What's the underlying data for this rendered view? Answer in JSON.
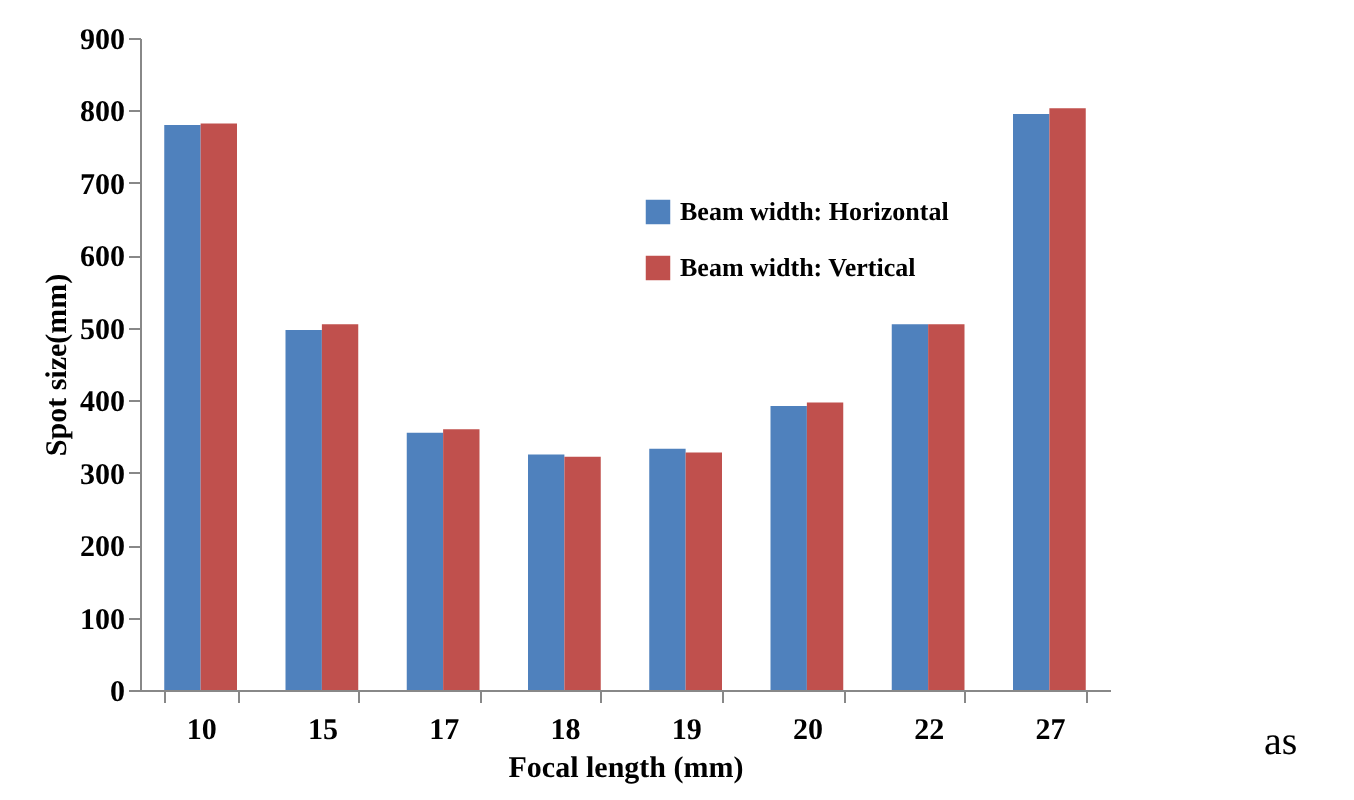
{
  "chart_data": {
    "type": "bar",
    "xlabel": "Focal length (mm)",
    "ylabel": "Spot size(mm)",
    "categories": [
      "10",
      "15",
      "17",
      "18",
      "19",
      "20",
      "22",
      "27"
    ],
    "series": [
      {
        "name": "Beam width: Horizontal",
        "color": "#4f81bd",
        "values": [
          780,
          497,
          355,
          325,
          333,
          392,
          505,
          795
        ]
      },
      {
        "name": "Beam width: Vertical",
        "color": "#c0504d",
        "values": [
          782,
          505,
          360,
          322,
          328,
          397,
          505,
          803
        ]
      }
    ],
    "ylim": [
      0,
      900
    ],
    "yticks": [
      0,
      100,
      200,
      300,
      400,
      500,
      600,
      700,
      800,
      900
    ],
    "grid": false,
    "legend": "top right",
    "annotations": [
      "as"
    ]
  }
}
